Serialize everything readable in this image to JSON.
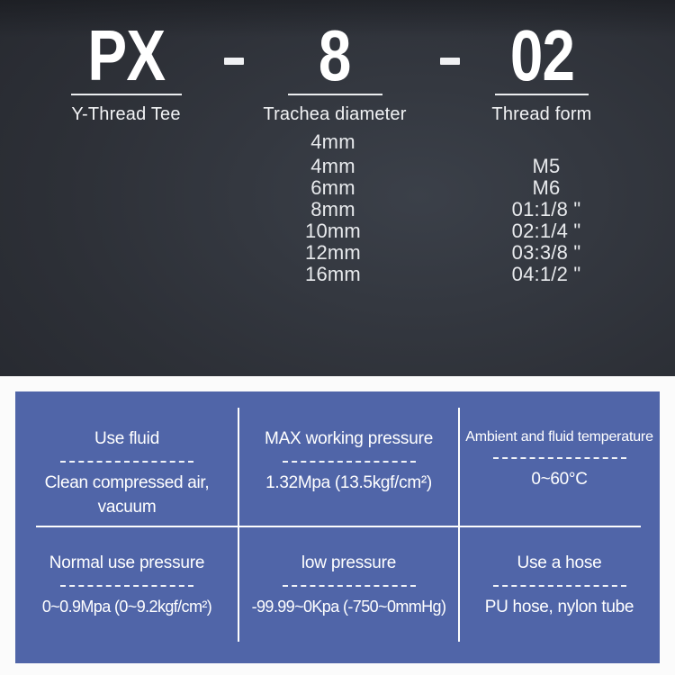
{
  "product_code": {
    "parts": [
      {
        "code": "PX",
        "label": "Y-Thread Tee"
      },
      {
        "code": "8",
        "label": "Trachea diameter"
      },
      {
        "code": "02",
        "label": "Thread form"
      }
    ]
  },
  "options": {
    "rows": [
      {
        "diameter": "4mm",
        "thread": ""
      },
      {
        "diameter": "4mm",
        "thread": "M5"
      },
      {
        "diameter": "6mm",
        "thread": "M6"
      },
      {
        "diameter": "8mm",
        "thread": "01:1/8 \""
      },
      {
        "diameter": "10mm",
        "thread": "02:1/4 \""
      },
      {
        "diameter": "12mm",
        "thread": "03:3/8 \""
      },
      {
        "diameter": "16mm",
        "thread": "04:1/2 \""
      }
    ]
  },
  "spec_table": {
    "cells": [
      {
        "title": "Use fluid",
        "value": "Clean compressed air,\nvacuum"
      },
      {
        "title": "MAX working pressure",
        "value": "1.32Mpa (13.5kgf/cm²)"
      },
      {
        "title": "Ambient and fluid temperature",
        "value": "0~60°C"
      },
      {
        "title": "Normal use pressure",
        "value": "0~0.9Mpa (0~9.2kgf/cm²)"
      },
      {
        "title": "low pressure",
        "value": "-99.99~0Kpa (-750~0mmHg)"
      },
      {
        "title": "Use a hose",
        "value": "PU hose, nylon tube"
      }
    ]
  },
  "colors": {
    "table-blue": "#5065a8",
    "dark-mid": "#2a2d34",
    "text-white": "#ffffff",
    "page-bg": "#fbfbfb"
  }
}
